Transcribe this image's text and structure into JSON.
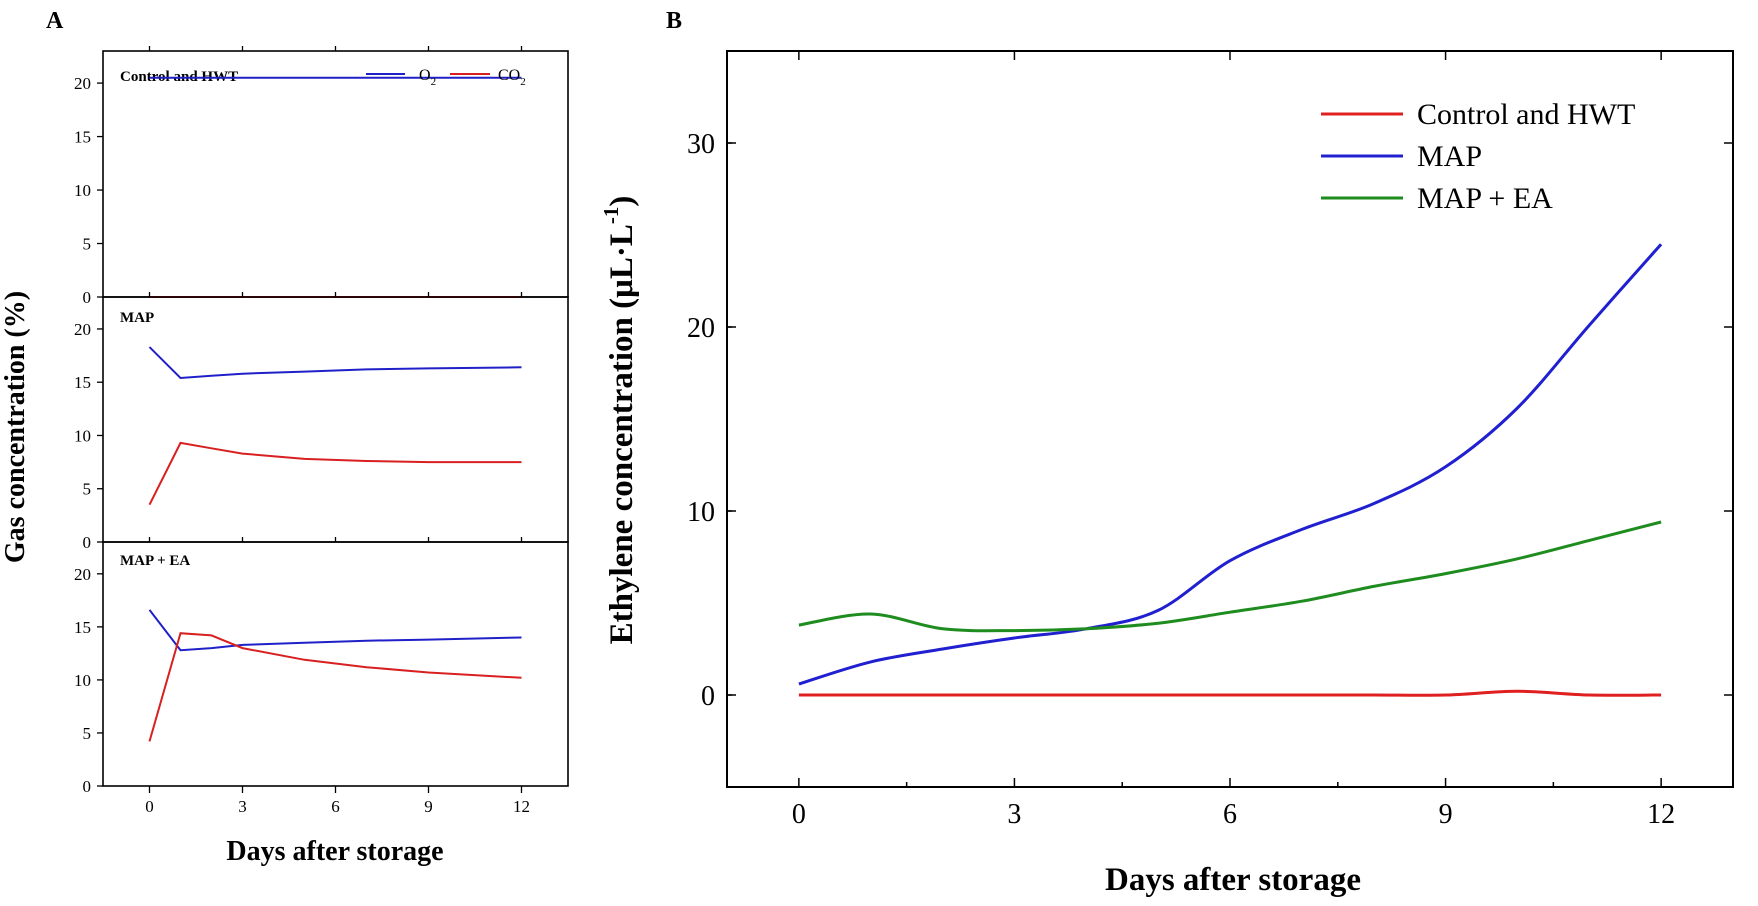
{
  "chart_data": [
    {
      "panel": "A",
      "type": "line",
      "xlabel": "Days after storage",
      "ylabel": "Gas concentration (%)",
      "xlim": [
        -1.5,
        13.5
      ],
      "ylim": [
        0,
        23
      ],
      "xticks": [
        0,
        3,
        6,
        9,
        12
      ],
      "yticks": [
        0,
        5,
        10,
        15,
        20
      ],
      "legend": {
        "placement": "top-right of first subplot",
        "items": [
          {
            "label": "O",
            "sub": "2",
            "color": "#2020c8"
          },
          {
            "label": "CO",
            "sub": "2",
            "color": "#d82020"
          }
        ]
      },
      "subplots": [
        {
          "title": "Control and HWT",
          "series": [
            {
              "name": "O2",
              "color": "#2020c8",
              "x": [
                0,
                12
              ],
              "values": [
                20.5,
                20.5
              ]
            },
            {
              "name": "CO2",
              "color": "#d82020",
              "x": [
                0,
                12
              ],
              "values": [
                0,
                0
              ]
            }
          ]
        },
        {
          "title": "MAP",
          "series": [
            {
              "name": "O2",
              "color": "#2020c8",
              "x": [
                0,
                1,
                2,
                3,
                5,
                7,
                9,
                12
              ],
              "values": [
                18.3,
                15.4,
                15.6,
                15.8,
                16.0,
                16.2,
                16.3,
                16.4
              ]
            },
            {
              "name": "CO2",
              "color": "#d82020",
              "x": [
                0,
                1,
                2,
                3,
                5,
                7,
                9,
                12
              ],
              "values": [
                3.5,
                9.3,
                8.8,
                8.3,
                7.8,
                7.6,
                7.5,
                7.5
              ]
            }
          ]
        },
        {
          "title": "MAP + EA",
          "series": [
            {
              "name": "O2",
              "color": "#2020c8",
              "x": [
                0,
                1,
                2,
                3,
                5,
                7,
                9,
                12
              ],
              "values": [
                16.6,
                12.8,
                13.0,
                13.3,
                13.5,
                13.7,
                13.8,
                14.0
              ]
            },
            {
              "name": "CO2",
              "color": "#d82020",
              "x": [
                0,
                1,
                2,
                3,
                5,
                7,
                9,
                12
              ],
              "values": [
                4.2,
                14.4,
                14.2,
                13.0,
                11.9,
                11.2,
                10.7,
                10.2
              ]
            }
          ]
        }
      ]
    },
    {
      "panel": "B",
      "type": "line",
      "xlabel": "Days after storage",
      "ylabel": "Ethylene concentration (μL·L",
      "ylabel_sup": "-1",
      "ylabel_close": ")",
      "xlim": [
        -1,
        13
      ],
      "ylim": [
        -5,
        35
      ],
      "xticks": [
        0,
        3,
        6,
        9,
        12
      ],
      "yticks": [
        0,
        10,
        20,
        30
      ],
      "legend_placement": "top-right",
      "series": [
        {
          "name": "Control and HWT",
          "color": "#e02020",
          "x": [
            0,
            1,
            2,
            3,
            4,
            5,
            6,
            7,
            8,
            9,
            10,
            11,
            12
          ],
          "values": [
            0,
            0,
            0,
            0,
            0,
            0,
            0,
            0,
            0,
            0,
            0.2,
            0,
            0
          ]
        },
        {
          "name": "MAP",
          "color": "#2020d0",
          "x": [
            0,
            1,
            2,
            3,
            4,
            5,
            6,
            7,
            8,
            9,
            10,
            11,
            12
          ],
          "values": [
            0.6,
            1.8,
            2.5,
            3.1,
            3.6,
            4.6,
            7.3,
            9.0,
            10.4,
            12.4,
            15.6,
            20.1,
            24.5
          ]
        },
        {
          "name": "MAP + EA",
          "color": "#1e8c1e",
          "x": [
            0,
            1,
            2,
            3,
            4,
            5,
            6,
            7,
            8,
            9,
            10,
            11,
            12
          ],
          "values": [
            3.8,
            4.4,
            3.6,
            3.5,
            3.6,
            3.9,
            4.5,
            5.1,
            5.9,
            6.6,
            7.4,
            8.4,
            9.4
          ]
        }
      ]
    }
  ]
}
